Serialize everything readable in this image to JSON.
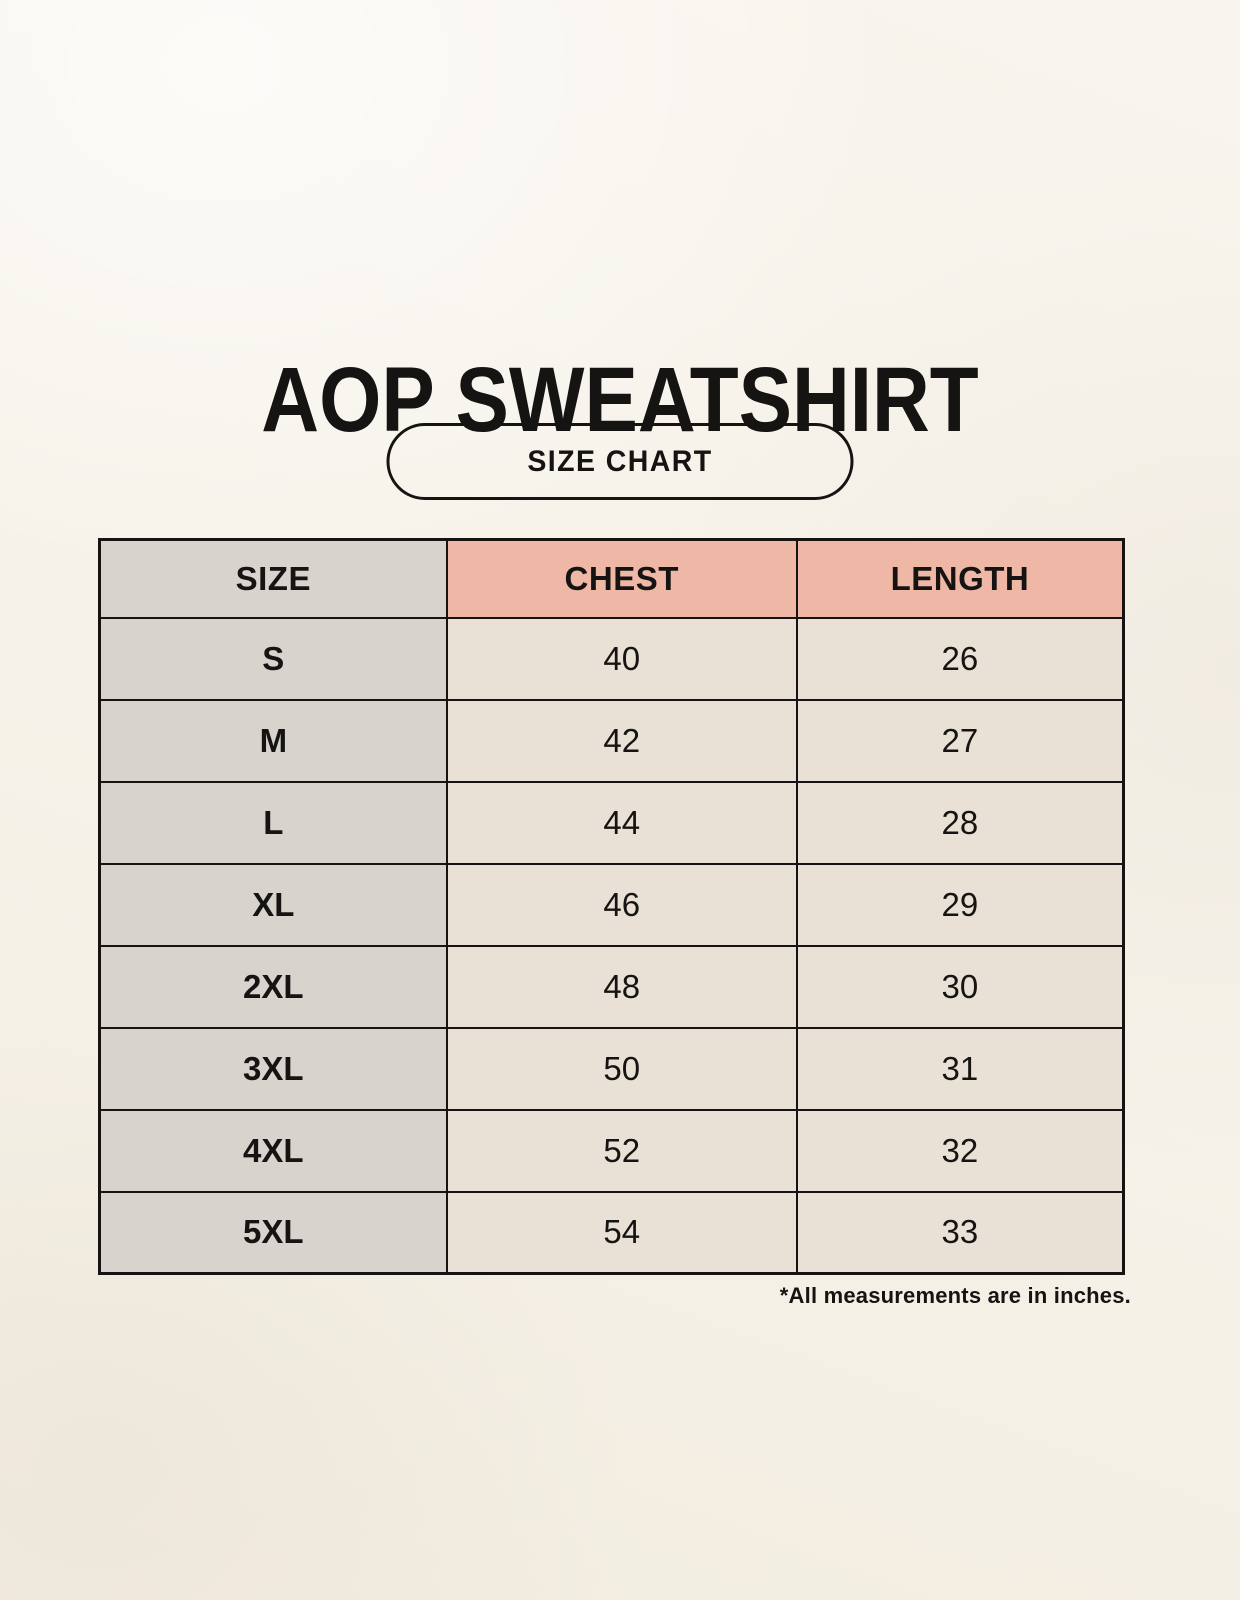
{
  "page": {
    "title": "AOP SWEATSHIRT",
    "badge_label": "SIZE CHART",
    "footnote": "*All measurements are in inches."
  },
  "colors": {
    "page_background": "#f6f2e9",
    "size_column_bg": "#d9d3ce",
    "header_accent_bg": "#efb7a5",
    "data_cell_bg": "#e9e1d5",
    "border": "#151413",
    "text": "#151413"
  },
  "chart_data": {
    "type": "table",
    "title": "AOP SWEATSHIRT",
    "subtitle": "SIZE CHART",
    "units": "inches",
    "columns": [
      "SIZE",
      "CHEST",
      "LENGTH"
    ],
    "rows": [
      {
        "size": "S",
        "chest": 40,
        "length": 26
      },
      {
        "size": "M",
        "chest": 42,
        "length": 27
      },
      {
        "size": "L",
        "chest": 44,
        "length": 28
      },
      {
        "size": "XL",
        "chest": 46,
        "length": 29
      },
      {
        "size": "2XL",
        "chest": 48,
        "length": 30
      },
      {
        "size": "3XL",
        "chest": 50,
        "length": 31
      },
      {
        "size": "4XL",
        "chest": 52,
        "length": 32
      },
      {
        "size": "5XL",
        "chest": 54,
        "length": 33
      }
    ],
    "note": "*All measurements are in inches."
  }
}
